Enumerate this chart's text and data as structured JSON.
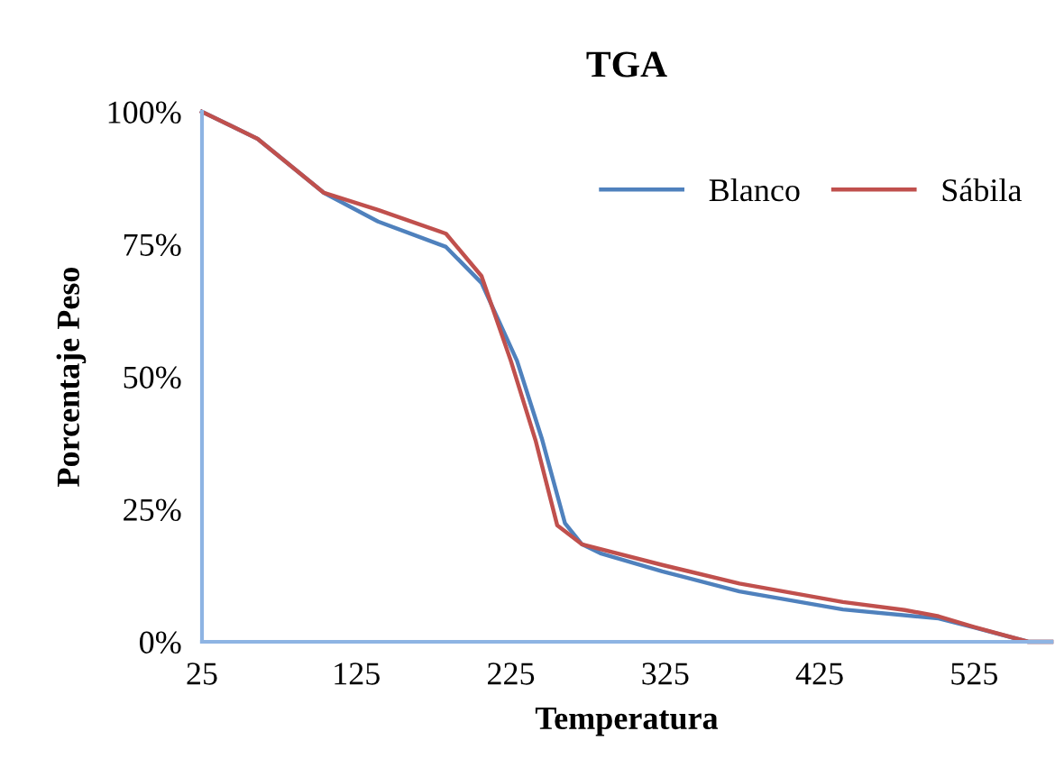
{
  "chart_data": {
    "type": "line",
    "title": "TGA",
    "xlabel": "Temperatura",
    "ylabel": "Porcentaje Peso",
    "xlim": [
      25,
      575
    ],
    "xticks": [
      25,
      125,
      225,
      325,
      425,
      525
    ],
    "ylim": [
      0,
      100
    ],
    "yticks": [
      {
        "value": 0,
        "label": "0%"
      },
      {
        "value": 25,
        "label": "25%"
      },
      {
        "value": 50,
        "label": "50%"
      },
      {
        "value": 75,
        "label": "75%"
      },
      {
        "value": 100,
        "label": "100%"
      }
    ],
    "grid": false,
    "legend": "top right",
    "marker": "none",
    "line_style": "solid",
    "series": [
      {
        "name": "Blanco",
        "color": "#4f81bd",
        "x": [
          25,
          61,
          104,
          139,
          183,
          206,
          229,
          245,
          260,
          271,
          283,
          323,
          373,
          440,
          502,
          525,
          560,
          575
        ],
        "values": [
          100,
          94.9,
          84.7,
          79.3,
          74.5,
          67.7,
          53,
          38.4,
          22.4,
          18.4,
          16.7,
          13.3,
          9.5,
          6.1,
          4.4,
          2.7,
          0,
          0
        ]
      },
      {
        "name": "Sábila",
        "color": "#c0504d",
        "x": [
          25,
          61,
          104,
          139,
          183,
          206,
          225,
          241,
          255,
          271,
          323,
          373,
          440,
          480,
          502,
          525,
          560,
          575
        ],
        "values": [
          100,
          94.9,
          84.7,
          81.5,
          77,
          69,
          53,
          38,
          22,
          18.4,
          14.5,
          11,
          7.5,
          6,
          4.8,
          2.8,
          0,
          0
        ]
      }
    ]
  }
}
